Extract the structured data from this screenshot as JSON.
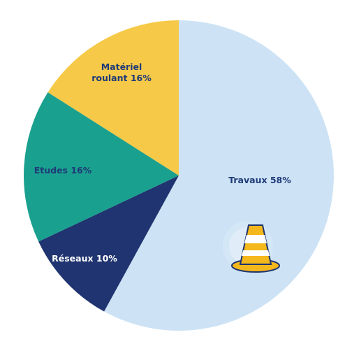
{
  "chart_data": {
    "type": "pie",
    "title": "",
    "start_angle_deg": 0,
    "direction": "clockwise",
    "slices": [
      {
        "label_lines": [
          "Travaux 58%"
        ],
        "value": 58,
        "color": "#cde3f5",
        "label_color": "#1e3a78"
      },
      {
        "label_lines": [
          "Réseaux 10%"
        ],
        "value": 10,
        "color": "#1f3470",
        "label_color": "#ffffff"
      },
      {
        "label_lines": [
          "Etudes 16%"
        ],
        "value": 16,
        "color": "#1aa08e",
        "label_color": "#1e3a78"
      },
      {
        "label_lines": [
          "Matériel",
          "roulant 16%"
        ],
        "value": 16,
        "color": "#f6c948",
        "label_color": "#1e3a78"
      }
    ]
  },
  "decoration": {
    "icon": "traffic-cone-icon",
    "cone_color": "#f4b81c",
    "stripe_color": "#ffffff",
    "outline_color": "#1f3470"
  }
}
